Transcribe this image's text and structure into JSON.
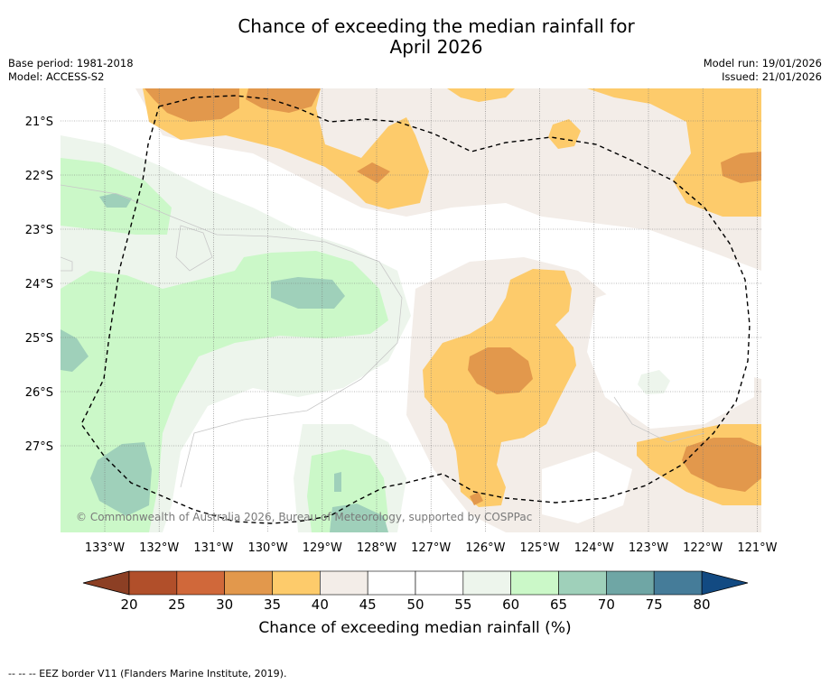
{
  "title_line1": "Chance of exceeding the median rainfall for",
  "title_line2": "April 2026",
  "base_period": "Base period: 1981-2018",
  "model": "Model: ACCESS-S2",
  "model_run": "Model run: 19/01/2026",
  "issued": "Issued: 21/01/2026",
  "lat_labels": [
    "21°S",
    "22°S",
    "23°S",
    "24°S",
    "25°S",
    "26°S",
    "27°S"
  ],
  "lon_labels": [
    "133°W",
    "132°W",
    "131°W",
    "130°W",
    "129°W",
    "128°W",
    "127°W",
    "126°W",
    "125°W",
    "124°W",
    "123°W",
    "122°W",
    "121°W"
  ],
  "copyright": "© Commonwealth of Australia 2026, Bureau of Meteorology, supported by COSPPac",
  "colorbar": {
    "ticks": [
      "20",
      "25",
      "30",
      "35",
      "40",
      "45",
      "50",
      "55",
      "60",
      "65",
      "70",
      "75",
      "80"
    ],
    "colors": [
      "#b14f2a",
      "#d0683a",
      "#e2984c",
      "#fdcb6b",
      "#f3ede8",
      "#ffffff",
      "#ffffff",
      "#edf5ec",
      "#cbf8c8",
      "#9fd0ba",
      "#6fa6a5",
      "#457c99"
    ],
    "under_color": "#8c3f24",
    "over_color": "#124a82",
    "label": "Chance of exceeding median rainfall (%)"
  },
  "footnote": "--  --  -- EEZ border V11 (Flanders Marine Institute, 2019)."
}
